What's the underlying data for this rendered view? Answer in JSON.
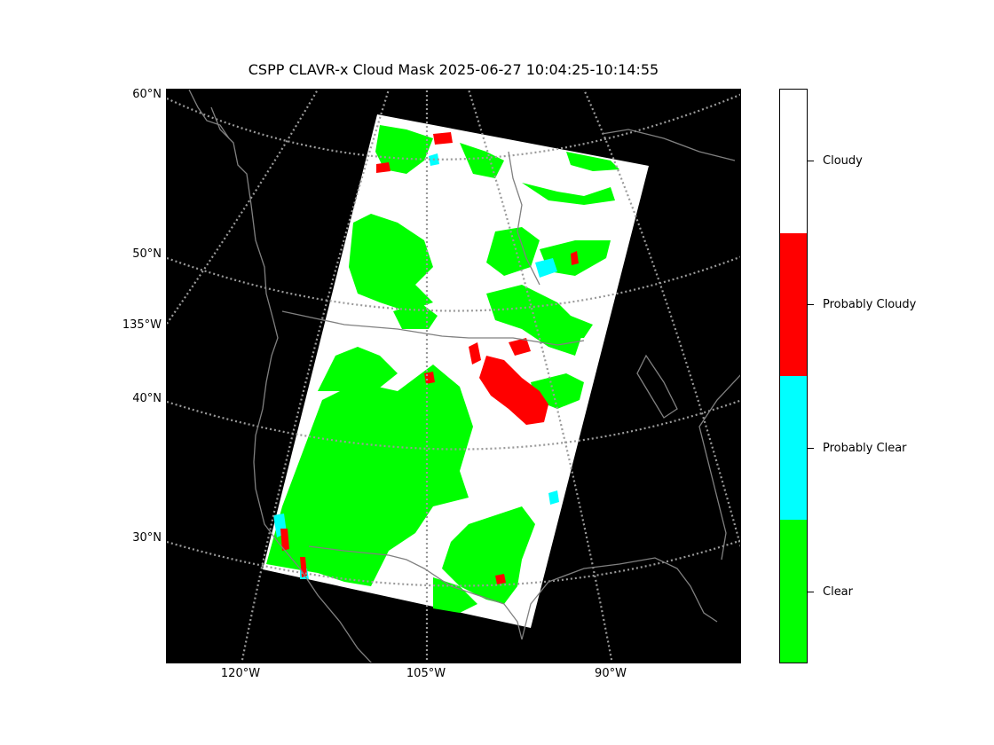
{
  "title": "CSPP CLAVR-x Cloud Mask 2025-06-27 10:04:25-10:14:55",
  "latitude_labels": [
    "60°N",
    "50°N",
    "135°W",
    "40°N",
    "30°N"
  ],
  "longitude_labels": [
    "120°W",
    "105°W",
    "90°W"
  ],
  "colorbar": {
    "categories": [
      {
        "label": "Cloudy",
        "color": "#ffffff"
      },
      {
        "label": "Probably Cloudy",
        "color": "#ff0000"
      },
      {
        "label": "Probably Clear",
        "color": "#00ffff"
      },
      {
        "label": "Clear",
        "color": "#00ff00"
      }
    ]
  },
  "map": {
    "background_color": "#000000",
    "coastline_color": "#808080",
    "graticule_color": "#9a9a9a"
  }
}
